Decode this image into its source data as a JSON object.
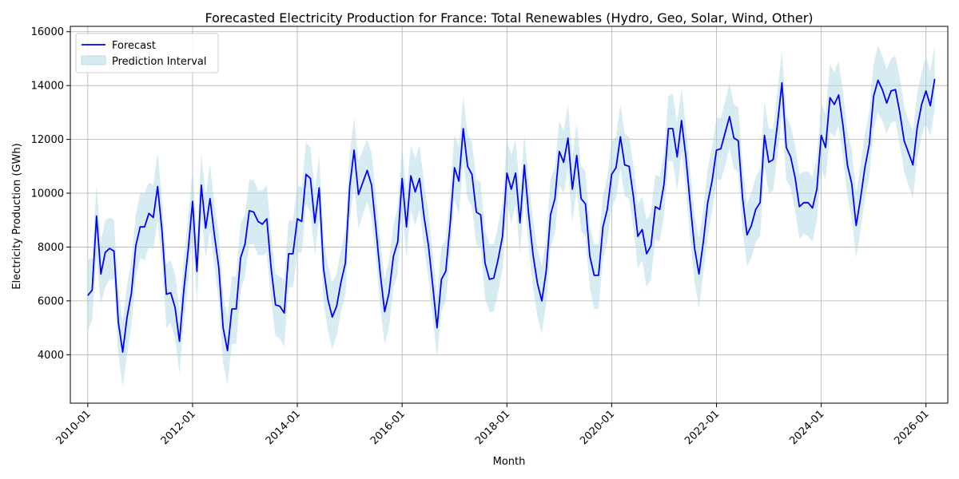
{
  "chart_data": {
    "type": "line",
    "title": "Forecasted Electricity Production for France: Total Renewables (Hydro, Geo, Solar, Wind, Other)",
    "xlabel": "Month",
    "ylabel": "Electricity Production (GWh)",
    "xlim": [
      "2009-09",
      "2026-06"
    ],
    "ylim": [
      2200,
      16200
    ],
    "x_ticks": [
      "2010-01",
      "2012-01",
      "2014-01",
      "2016-01",
      "2018-01",
      "2020-01",
      "2022-01",
      "2024-01",
      "2026-01"
    ],
    "y_ticks": [
      4000,
      6000,
      8000,
      10000,
      12000,
      14000,
      16000
    ],
    "grid": true,
    "legend_position": "top-left",
    "legend": [
      "Forecast",
      "Prediction Interval"
    ],
    "colors": {
      "forecast": "#0000ff",
      "interval": "#add8e6"
    },
    "start_month": "2010-01",
    "series": [
      {
        "name": "Forecast",
        "values": [
          6200,
          6400,
          9150,
          7000,
          7800,
          7950,
          7850,
          5200,
          4100,
          5400,
          6300,
          8050,
          8750,
          8750,
          9250,
          9100,
          10250,
          8600,
          6250,
          6300,
          5750,
          4500,
          6400,
          7900,
          9700,
          7100,
          10300,
          8700,
          9800,
          8450,
          7250,
          5000,
          4150,
          5700,
          5700,
          7600,
          8100,
          9350,
          9300,
          8950,
          8850,
          9050,
          7200,
          5850,
          5800,
          5550,
          7750,
          7750,
          9050,
          8950,
          10700,
          10550,
          8900,
          10200,
          7200,
          6050,
          5400,
          5800,
          6700,
          7400,
          10250,
          11600,
          9950,
          10400,
          10850,
          10300,
          8700,
          7000,
          5600,
          6300,
          7650,
          8200,
          10550,
          8750,
          10650,
          10050,
          10550,
          9150,
          8100,
          6600,
          5000,
          6800,
          7100,
          8850,
          10950,
          10450,
          12400,
          11000,
          10700,
          9300,
          9200,
          7400,
          6800,
          6850,
          7550,
          8400,
          10750,
          10150,
          10750,
          8900,
          11050,
          9200,
          7700,
          6650,
          6000,
          7100,
          9200,
          9800,
          11550,
          11150,
          12050,
          10150,
          11400,
          9800,
          9600,
          7650,
          6950,
          6950,
          8750,
          9400,
          10700,
          10950,
          12100,
          11050,
          11000,
          9850,
          8400,
          8650,
          7750,
          8050,
          9500,
          9400,
          10350,
          12400,
          12400,
          11350,
          12700,
          11350,
          9600,
          7950,
          7000,
          8200,
          9650,
          10450,
          11600,
          11650,
          12250,
          12850,
          12050,
          11950,
          9800,
          8450,
          8800,
          9400,
          9650,
          12150,
          11150,
          11250,
          12600,
          14100,
          11700,
          11350,
          10600,
          9500,
          9650,
          9650,
          9450,
          10150,
          12150,
          11700,
          13550,
          13300,
          13650,
          12500,
          11050,
          10350,
          8800,
          9800,
          10950,
          11800,
          13600,
          14200,
          13850,
          13350,
          13800,
          13850,
          13000,
          11950,
          11500,
          11050,
          12450,
          13300,
          13800,
          13250,
          14250
        ]
      },
      {
        "name": "Prediction Interval",
        "lower": [
          4900,
          5300,
          7700,
          5900,
          6500,
          6800,
          6800,
          4000,
          2800,
          4000,
          5100,
          6900,
          7600,
          7500,
          8000,
          7900,
          9000,
          7400,
          5000,
          5200,
          4600,
          3300,
          5200,
          6700,
          8500,
          5900,
          9200,
          7600,
          8600,
          7300,
          6000,
          3700,
          2900,
          4400,
          4400,
          6400,
          6900,
          8100,
          8100,
          7700,
          7700,
          7800,
          6000,
          4700,
          4600,
          4300,
          6500,
          6500,
          7800,
          7800,
          9600,
          9300,
          7700,
          9000,
          6000,
          4900,
          4200,
          4700,
          5600,
          6200,
          9000,
          10300,
          8700,
          9200,
          9700,
          9100,
          7600,
          5800,
          4400,
          5000,
          6500,
          7000,
          9400,
          7600,
          9400,
          8800,
          9400,
          8000,
          6900,
          5400,
          3900,
          5600,
          6000,
          7700,
          9800,
          9200,
          11200,
          9800,
          9500,
          8100,
          8000,
          6100,
          5600,
          5600,
          6300,
          7200,
          9600,
          8900,
          9600,
          7700,
          9800,
          8000,
          6500,
          5400,
          4800,
          5900,
          8000,
          8500,
          10300,
          10000,
          10900,
          8900,
          10200,
          8600,
          8400,
          6500,
          5700,
          5700,
          7500,
          8200,
          9500,
          9800,
          10900,
          9900,
          9800,
          8700,
          7200,
          7500,
          6500,
          6800,
          8300,
          8200,
          9200,
          11200,
          11200,
          10100,
          11500,
          10200,
          8300,
          6700,
          5700,
          7000,
          8400,
          9300,
          10500,
          10500,
          11000,
          11700,
          10900,
          10800,
          8600,
          7300,
          7600,
          8200,
          8400,
          11000,
          10000,
          10100,
          11400,
          12900,
          10500,
          10200,
          9400,
          8300,
          8500,
          8400,
          8200,
          9000,
          10900,
          10500,
          12300,
          12100,
          12500,
          11300,
          9900,
          9100,
          7600,
          8600,
          9800,
          10600,
          12400,
          13000,
          12700,
          12200,
          12600,
          12700,
          11800,
          10800,
          10300,
          9800,
          11300,
          12100,
          12600,
          12100,
          13100
        ],
        "upper": [
          7500,
          7600,
          10300,
          8200,
          9000,
          9100,
          9000,
          6400,
          5200,
          6600,
          7500,
          9200,
          10000,
          10000,
          10400,
          10300,
          11500,
          9800,
          7400,
          7500,
          7000,
          5600,
          7600,
          9100,
          10900,
          8300,
          11500,
          9900,
          11100,
          9600,
          8500,
          6200,
          5400,
          6900,
          6900,
          8900,
          9200,
          10500,
          10500,
          10100,
          10100,
          10300,
          8400,
          7000,
          6900,
          6800,
          9000,
          9000,
          10300,
          10200,
          11900,
          11700,
          10100,
          11400,
          8400,
          7300,
          6700,
          7000,
          7900,
          8600,
          11500,
          12800,
          11200,
          11600,
          12000,
          11500,
          9900,
          8200,
          6800,
          7500,
          8800,
          9500,
          11800,
          10000,
          11800,
          11300,
          11800,
          10400,
          9300,
          7800,
          6200,
          8000,
          8300,
          10000,
          12200,
          11700,
          13600,
          12200,
          11900,
          10500,
          10400,
          8600,
          8100,
          8100,
          8800,
          9600,
          12000,
          11400,
          12000,
          10100,
          12200,
          10500,
          9000,
          7900,
          7300,
          8300,
          10500,
          11000,
          12700,
          12300,
          13300,
          11300,
          12600,
          11000,
          10800,
          8800,
          8100,
          8100,
          9900,
          10600,
          11900,
          12100,
          13300,
          12200,
          12100,
          11000,
          9600,
          9900,
          9000,
          9300,
          10700,
          10600,
          11500,
          13600,
          13700,
          12600,
          13900,
          12500,
          10800,
          9200,
          8300,
          9400,
          10900,
          11700,
          12800,
          12800,
          13400,
          14100,
          13300,
          13200,
          11000,
          9600,
          10000,
          10600,
          10900,
          13400,
          12400,
          12400,
          13800,
          15300,
          12900,
          12500,
          11800,
          10700,
          10800,
          10800,
          10600,
          11300,
          13400,
          12900,
          14800,
          14500,
          14900,
          13700,
          12300,
          11600,
          10000,
          11000,
          12200,
          13000,
          14800,
          15500,
          15100,
          14600,
          15000,
          15100,
          14300,
          13200,
          12700,
          12300,
          13700,
          14500,
          15100,
          14500,
          15500
        ]
      }
    ]
  }
}
